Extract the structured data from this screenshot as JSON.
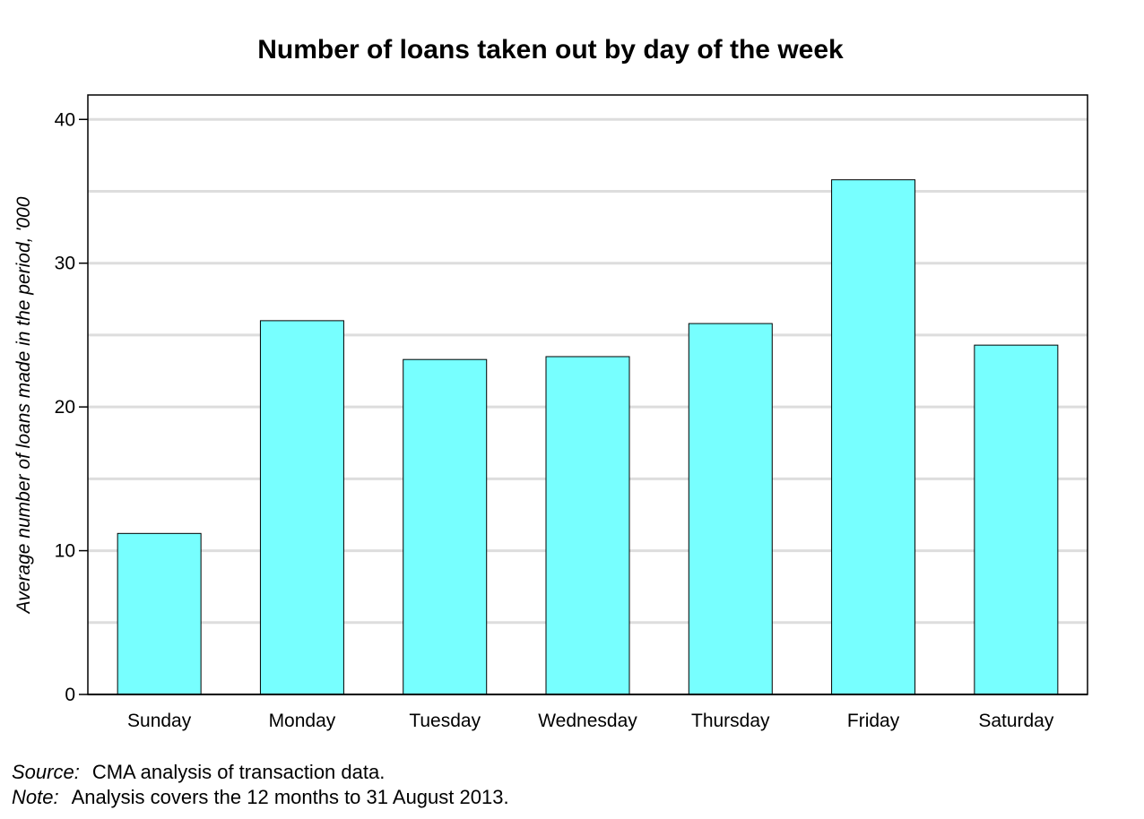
{
  "chart_data": {
    "type": "bar",
    "title": "Number of loans taken out by day of the week",
    "ylabel": "Average number of loans made in the period, '000",
    "xlabel": "",
    "categories": [
      "Sunday",
      "Monday",
      "Tuesday",
      "Wednesday",
      "Thursday",
      "Friday",
      "Saturday"
    ],
    "values": [
      11.2,
      26.0,
      23.3,
      23.5,
      25.8,
      35.8,
      24.3
    ],
    "ylim": [
      0,
      41.7
    ],
    "yticks": [
      0,
      10,
      20,
      30,
      40
    ],
    "grid": true,
    "gridlines": [
      5,
      10,
      15,
      20,
      25,
      30,
      35,
      40
    ],
    "legend": "none",
    "colors": {
      "bar": "#77ffff",
      "bar_stroke": "#000000",
      "grid": "#dddddd",
      "axis": "#000000"
    }
  },
  "footnotes": {
    "source_label": "Source:",
    "source_text": "CMA analysis of transaction data.",
    "note_label": "Note:",
    "note_text": "Analysis covers the 12 months to 31 August 2013."
  }
}
